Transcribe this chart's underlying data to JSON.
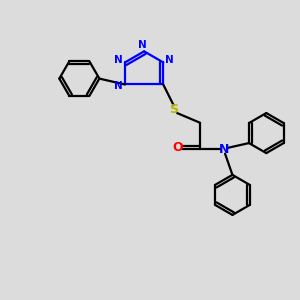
{
  "background_color": "#dcdcdc",
  "bond_color": "#000000",
  "nitrogen_color": "#0000ff",
  "oxygen_color": "#ff0000",
  "sulfur_color": "#b8b800",
  "line_width": 1.6,
  "figsize": [
    3.0,
    3.0
  ],
  "dpi": 100,
  "xlim": [
    0,
    10
  ],
  "ylim": [
    0,
    10
  ]
}
